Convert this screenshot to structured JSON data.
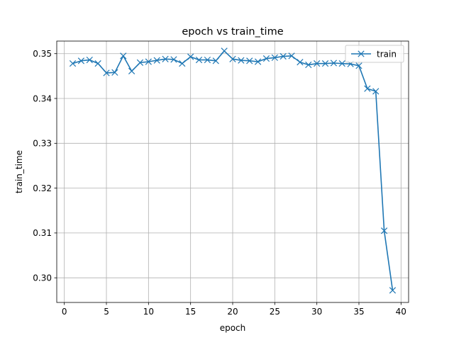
{
  "chart_data": {
    "type": "line",
    "title": "epoch vs train_time",
    "xlabel": "epoch",
    "ylabel": "train_time",
    "xlim": [
      -0.9,
      40.9
    ],
    "ylim": [
      0.2945,
      0.3528
    ],
    "xticks": [
      0,
      5,
      10,
      15,
      20,
      25,
      30,
      35,
      40
    ],
    "xtick_labels": [
      "0",
      "5",
      "10",
      "15",
      "20",
      "25",
      "30",
      "35",
      "40"
    ],
    "yticks": [
      0.3,
      0.31,
      0.32,
      0.33,
      0.34,
      0.35
    ],
    "ytick_labels": [
      "0.30",
      "0.31",
      "0.32",
      "0.33",
      "0.34",
      "0.35"
    ],
    "grid": true,
    "legend_position": "upper right",
    "series": [
      {
        "name": "train",
        "color": "#1f77b4",
        "marker": "x",
        "x": [
          1,
          2,
          3,
          4,
          5,
          6,
          7,
          8,
          9,
          10,
          11,
          12,
          13,
          14,
          15,
          16,
          17,
          18,
          19,
          20,
          21,
          22,
          23,
          24,
          25,
          26,
          27,
          28,
          29,
          30,
          31,
          32,
          33,
          34,
          35,
          36,
          37,
          38,
          39
        ],
        "y": [
          0.3478,
          0.3484,
          0.3486,
          0.3478,
          0.3457,
          0.3458,
          0.3495,
          0.3461,
          0.348,
          0.3482,
          0.3485,
          0.3488,
          0.3487,
          0.3478,
          0.3493,
          0.3486,
          0.3486,
          0.3484,
          0.3506,
          0.3488,
          0.3485,
          0.3484,
          0.3482,
          0.3489,
          0.3491,
          0.3494,
          0.3495,
          0.3481,
          0.3475,
          0.3478,
          0.3478,
          0.3479,
          0.3478,
          0.3477,
          0.3473,
          0.3422,
          0.3416,
          0.3105,
          0.2972
        ]
      }
    ]
  }
}
